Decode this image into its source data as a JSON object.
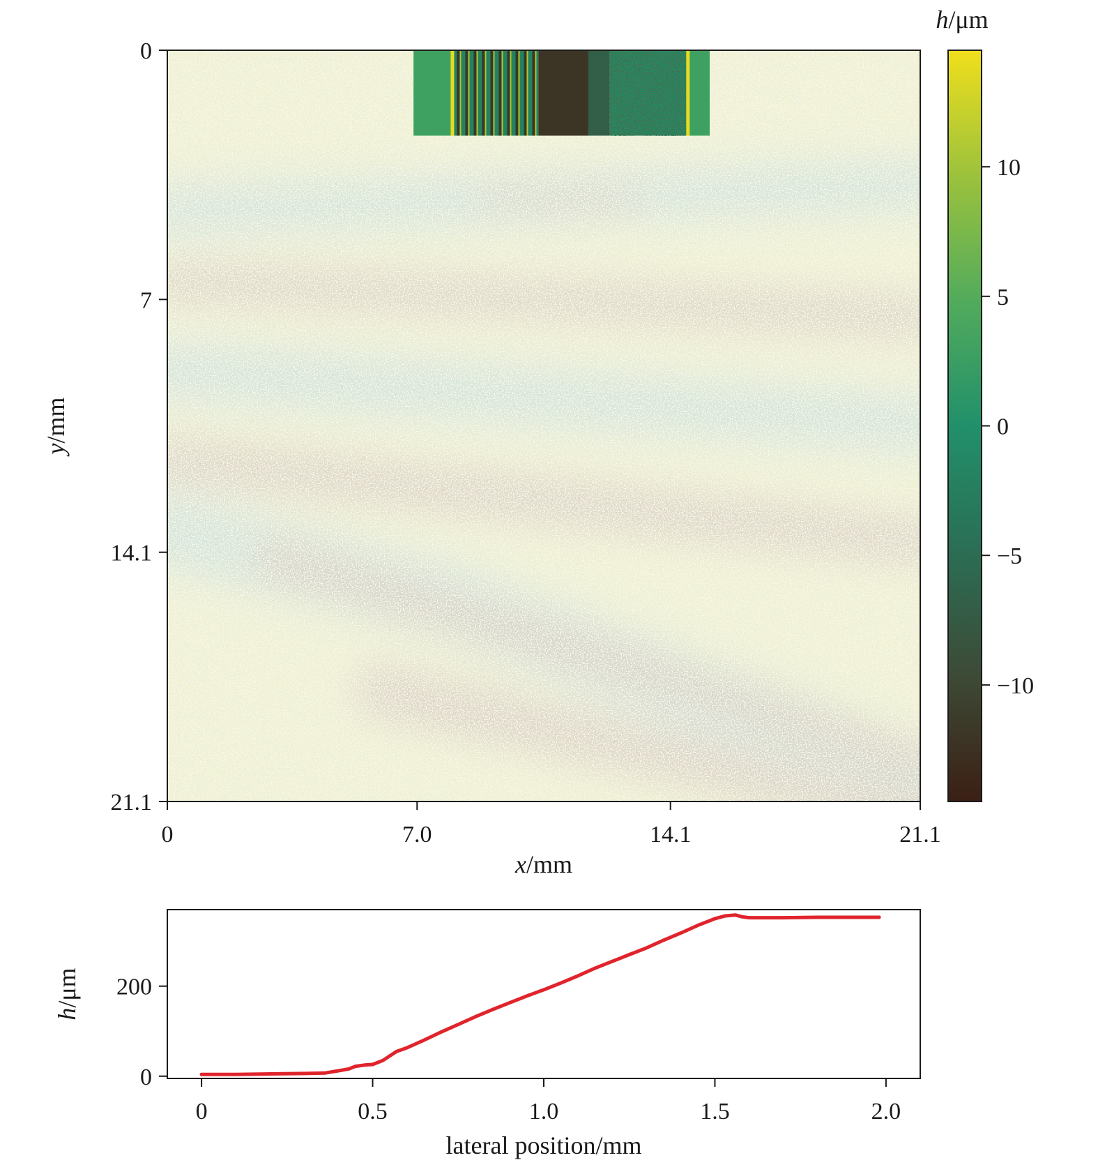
{
  "chart_data": [
    {
      "type": "heatmap",
      "title": "",
      "xlabel_var": "x",
      "xlabel_unit": "/mm",
      "ylabel_var": "y",
      "ylabel_unit": "/mm",
      "xlim": [
        0,
        21.1
      ],
      "ylim": [
        0,
        21.1
      ],
      "y_axis_inverted": true,
      "x_ticks": [
        {
          "value": 0,
          "label": "0"
        },
        {
          "value": 7.0,
          "label": "7.0"
        },
        {
          "value": 14.1,
          "label": "14.1"
        },
        {
          "value": 21.1,
          "label": "21.1"
        }
      ],
      "y_ticks": [
        {
          "value": 0,
          "label": "0"
        },
        {
          "value": 7,
          "label": "7"
        },
        {
          "value": 14.1,
          "label": "14.1"
        },
        {
          "value": 21.1,
          "label": "21.1"
        }
      ],
      "colorbar": {
        "label_var": "h",
        "label_unit": "/μm",
        "range": [
          -14.5,
          14.5
        ],
        "ticks": [
          {
            "value": 10,
            "label": "10"
          },
          {
            "value": 5,
            "label": "5"
          },
          {
            "value": 0,
            "label": "0"
          },
          {
            "value": -5,
            "label": "−5"
          },
          {
            "value": -10,
            "label": "−10"
          }
        ],
        "colors": [
          "#3b1f14",
          "#3d4a36",
          "#2b6e55",
          "#21906a",
          "#52ab5c",
          "#9cc23c",
          "#f0df1c"
        ]
      },
      "background_colors": [
        "#f0f2d2",
        "#cfe3dd",
        "#d9cfc3"
      ],
      "inset_region": {
        "x_range": [
          6.9,
          15.2
        ],
        "y_range": [
          0,
          2.4
        ],
        "columns": [
          {
            "x_range": [
              6.9,
              8.0
            ],
            "h": 3
          },
          {
            "x_range": [
              8.0,
              10.4
            ],
            "h": -2,
            "pattern": "stripes"
          },
          {
            "x_range": [
              10.4,
              11.8
            ],
            "h": -12
          },
          {
            "x_range": [
              11.8,
              12.4
            ],
            "h": -7
          },
          {
            "x_range": [
              12.4,
              14.6
            ],
            "h": -1,
            "pattern": "speckle"
          },
          {
            "x_range": [
              14.6,
              15.2
            ],
            "h": 3
          }
        ]
      }
    },
    {
      "type": "line",
      "title": "",
      "xlabel": "lateral position/mm",
      "ylabel_var": "h",
      "ylabel_unit": "/μm",
      "xlim": [
        -0.1,
        2.1
      ],
      "ylim": [
        -5,
        370
      ],
      "x_ticks": [
        {
          "value": 0,
          "label": "0"
        },
        {
          "value": 0.5,
          "label": "0.5"
        },
        {
          "value": 1.0,
          "label": "1.0"
        },
        {
          "value": 1.5,
          "label": "1.5"
        },
        {
          "value": 2.0,
          "label": "2.0"
        }
      ],
      "y_ticks": [
        {
          "value": 0,
          "label": "0"
        },
        {
          "value": 200,
          "label": "200"
        }
      ],
      "series": [
        {
          "color": "#e0242c",
          "x": [
            0,
            0.1,
            0.2,
            0.3,
            0.36,
            0.4,
            0.43,
            0.45,
            0.48,
            0.5,
            0.53,
            0.57,
            0.6,
            0.65,
            0.7,
            0.75,
            0.8,
            0.85,
            0.9,
            0.95,
            1.0,
            1.05,
            1.1,
            1.15,
            1.2,
            1.25,
            1.3,
            1.35,
            1.4,
            1.45,
            1.5,
            1.53,
            1.56,
            1.58,
            1.6,
            1.7,
            1.8,
            1.9,
            1.98
          ],
          "y": [
            4,
            4,
            5,
            6,
            7,
            12,
            16,
            22,
            25,
            26,
            35,
            55,
            63,
            80,
            98,
            115,
            132,
            148,
            163,
            178,
            192,
            207,
            223,
            240,
            255,
            270,
            285,
            302,
            318,
            335,
            350,
            356,
            358,
            354,
            352,
            352,
            353,
            353,
            353
          ]
        }
      ]
    }
  ]
}
